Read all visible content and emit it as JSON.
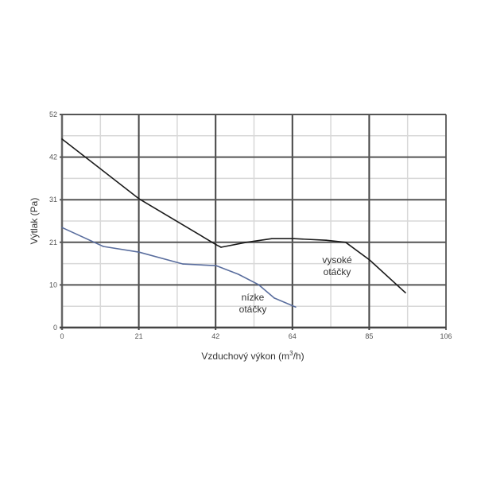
{
  "chart_data": {
    "type": "line",
    "title": "",
    "xlabel": "Vzduchový výkon (m³/h)",
    "xlabel_main": "Vzduchový výkon (m",
    "xlabel_sup": "3",
    "xlabel_end": "/h)",
    "ylabel": "Výtlak (Pa)",
    "xlim": [
      0,
      106
    ],
    "ylim": [
      0,
      52
    ],
    "xticks": [
      "0",
      "21",
      "42",
      "64",
      "85",
      "106"
    ],
    "yticks": [
      "0",
      "10",
      "21",
      "31",
      "42",
      "52"
    ],
    "grid": true,
    "series": [
      {
        "name": "vysoké otáčky",
        "label_lines": [
          "vysoké",
          "otáčky"
        ],
        "color": "#1a1a1a",
        "x": [
          0,
          21.3,
          42.6,
          43.9,
          50.9,
          57.9,
          64.1,
          72.9,
          78.3,
          84.9,
          94.8
        ],
        "y": [
          46.0,
          31.4,
          20.2,
          19.6,
          20.8,
          21.7,
          21.7,
          21.3,
          20.8,
          16.5,
          8.5
        ]
      },
      {
        "name": "nízke otáčky",
        "label_lines": [
          "nízke",
          "otáčky"
        ],
        "color": "#5a6e9e",
        "x": [
          0,
          11.4,
          21.3,
          33.4,
          42.6,
          48.7,
          54.2,
          58.6,
          64.5
        ],
        "y": [
          24.4,
          19.8,
          18.4,
          15.5,
          15.1,
          13.0,
          10.5,
          7.2,
          5.0
        ]
      }
    ]
  }
}
